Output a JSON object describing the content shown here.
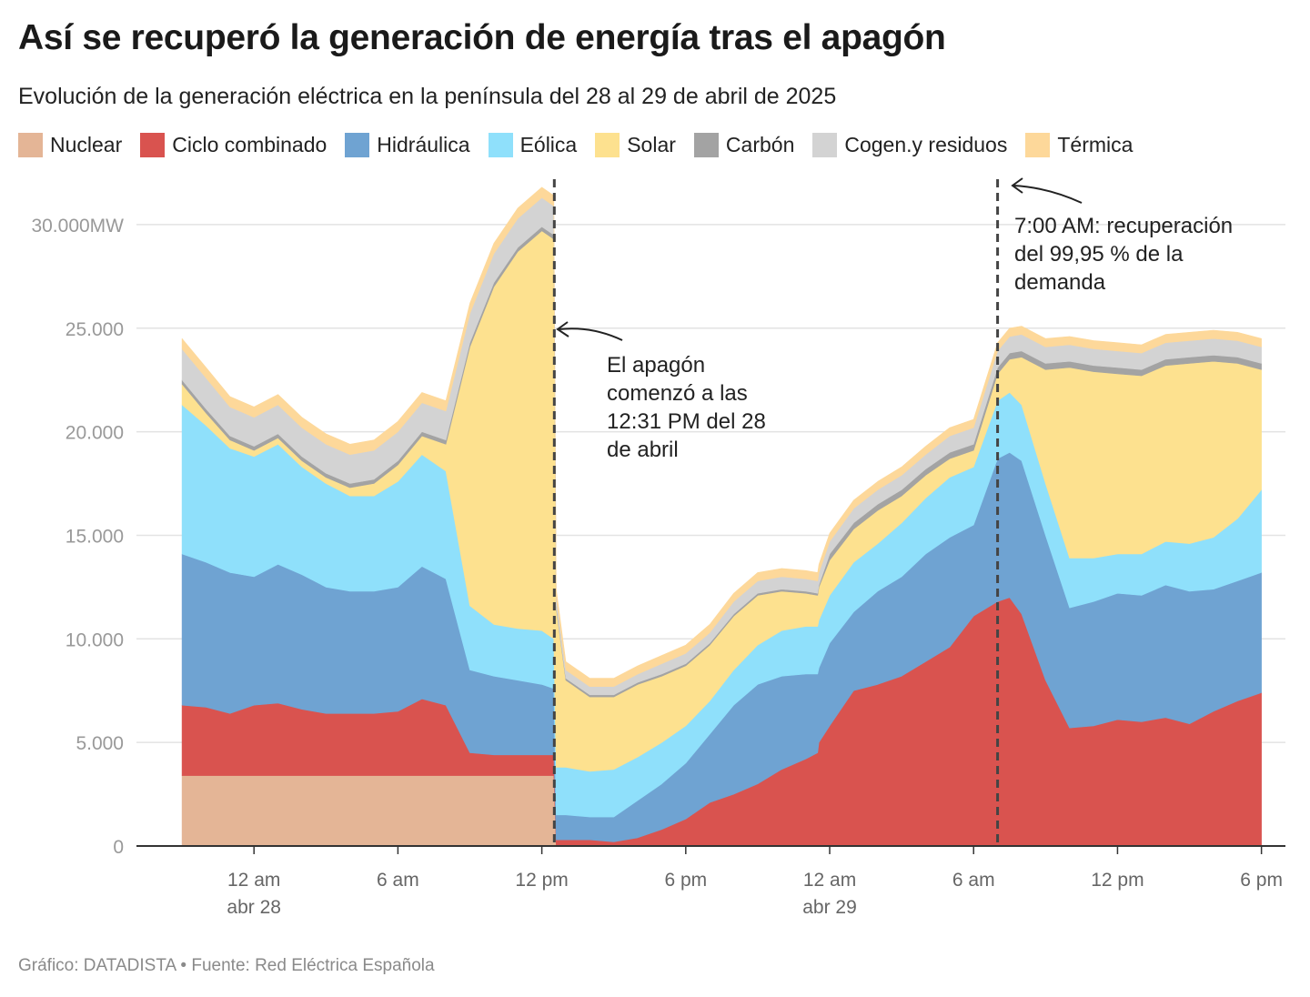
{
  "title": "Así se recuperó la generación de energía tras el apagón",
  "subtitle": "Evolución de la generación eléctrica en la península del 28 al 29 de abril de 2025",
  "source": "Gráfico: DATADISTA • Fuente: Red Eléctrica Española",
  "legend": [
    {
      "label": "Nuclear",
      "color": "#e4b596"
    },
    {
      "label": "Ciclo combinado",
      "color": "#d9534f"
    },
    {
      "label": "Hidráulica",
      "color": "#6fa3d2"
    },
    {
      "label": "Eólica",
      "color": "#8fe0fb"
    },
    {
      "label": "Solar",
      "color": "#fde18f"
    },
    {
      "label": "Carbón",
      "color": "#a3a3a3"
    },
    {
      "label": "Cogen.y residuos",
      "color": "#d3d3d3"
    },
    {
      "label": "Térmica",
      "color": "#fdd89a"
    }
  ],
  "chart_data": {
    "type": "area",
    "stacked": true,
    "title": "Así se recuperó la generación de energía tras el apagón",
    "x_unit": "hours since 00:00 abr 28",
    "x": [
      -3,
      -2,
      -1,
      0,
      1,
      2,
      3,
      4,
      5,
      6,
      7,
      8,
      9,
      10,
      11,
      12,
      12.5,
      12.6,
      13,
      14,
      15,
      16,
      17,
      18,
      19,
      20,
      21,
      22,
      23,
      23.5,
      23.55,
      24,
      25,
      26,
      27,
      28,
      29,
      30,
      31,
      31.5,
      32,
      33,
      34,
      35,
      36,
      37,
      38,
      39,
      40,
      41,
      42
    ],
    "series": [
      {
        "name": "Nuclear",
        "values": [
          3400,
          3400,
          3400,
          3400,
          3400,
          3400,
          3400,
          3400,
          3400,
          3400,
          3400,
          3400,
          3400,
          3400,
          3400,
          3400,
          3400,
          0,
          0,
          0,
          0,
          0,
          0,
          0,
          0,
          0,
          0,
          0,
          0,
          0,
          0,
          0,
          0,
          0,
          0,
          0,
          0,
          0,
          0,
          0,
          0,
          0,
          0,
          0,
          0,
          0,
          0,
          0,
          0,
          0,
          0
        ]
      },
      {
        "name": "Ciclo combinado",
        "values": [
          3400,
          3300,
          3000,
          3400,
          3500,
          3200,
          3000,
          3000,
          3000,
          3100,
          3700,
          3400,
          1100,
          1000,
          1000,
          1000,
          1000,
          300,
          300,
          300,
          200,
          400,
          800,
          1300,
          2100,
          2500,
          3000,
          3700,
          4200,
          4500,
          5000,
          5800,
          7500,
          7800,
          8200,
          8900,
          9600,
          11100,
          11800,
          12000,
          11200,
          8000,
          5700,
          5800,
          6100,
          6000,
          6200,
          5900,
          6500,
          7000,
          7400
        ]
      },
      {
        "name": "Hidráulica",
        "values": [
          7300,
          7000,
          6800,
          6200,
          6700,
          6500,
          6100,
          5900,
          5900,
          6000,
          6400,
          6100,
          4000,
          3800,
          3600,
          3400,
          3200,
          1200,
          1200,
          1100,
          1200,
          1800,
          2200,
          2700,
          3300,
          4300,
          4800,
          4500,
          4100,
          3800,
          3600,
          4000,
          3800,
          4500,
          4800,
          5200,
          5300,
          4400,
          6900,
          7000,
          7400,
          7000,
          5800,
          6000,
          6100,
          6100,
          6400,
          6400,
          5900,
          5800,
          5800
        ]
      },
      {
        "name": "Eólica",
        "values": [
          7200,
          6600,
          6000,
          5800,
          5800,
          5200,
          5000,
          4600,
          4600,
          5100,
          5400,
          5200,
          3100,
          2500,
          2500,
          2600,
          2400,
          2300,
          2300,
          2200,
          2300,
          2100,
          2000,
          1800,
          1600,
          1700,
          1900,
          2200,
          2300,
          2300,
          2300,
          2300,
          2400,
          2300,
          2600,
          2700,
          2900,
          2800,
          2800,
          2900,
          2700,
          2500,
          2400,
          2100,
          1900,
          2000,
          2100,
          2300,
          2500,
          3000,
          4000
        ]
      },
      {
        "name": "Solar",
        "values": [
          1000,
          600,
          400,
          300,
          300,
          300,
          300,
          400,
          600,
          800,
          900,
          1300,
          12500,
          16300,
          18200,
          19300,
          19300,
          7700,
          4200,
          3600,
          3500,
          3500,
          3200,
          2900,
          2700,
          2600,
          2400,
          1900,
          1600,
          1500,
          1600,
          1700,
          1600,
          1600,
          1300,
          1100,
          900,
          800,
          1300,
          1600,
          2300,
          5500,
          9200,
          9000,
          8700,
          8600,
          8500,
          8700,
          8500,
          7500,
          5800
        ]
      },
      {
        "name": "Carbón",
        "values": [
          200,
          200,
          200,
          200,
          200,
          200,
          200,
          200,
          200,
          200,
          200,
          200,
          200,
          200,
          200,
          200,
          200,
          100,
          100,
          100,
          100,
          100,
          100,
          100,
          100,
          100,
          100,
          100,
          100,
          100,
          100,
          300,
          300,
          300,
          300,
          300,
          300,
          300,
          300,
          300,
          300,
          300,
          300,
          300,
          300,
          300,
          300,
          300,
          300,
          300,
          300
        ]
      },
      {
        "name": "Cogen.y residuos",
        "values": [
          1500,
          1500,
          1400,
          1400,
          1400,
          1400,
          1400,
          1400,
          1400,
          1400,
          1400,
          1400,
          1400,
          1400,
          1400,
          1400,
          1400,
          400,
          400,
          400,
          400,
          400,
          500,
          500,
          500,
          600,
          600,
          600,
          600,
          600,
          600,
          600,
          700,
          700,
          700,
          700,
          800,
          800,
          800,
          800,
          800,
          800,
          800,
          800,
          800,
          800,
          800,
          800,
          800,
          800,
          800
        ]
      },
      {
        "name": "Térmica",
        "values": [
          500,
          500,
          500,
          500,
          500,
          500,
          500,
          500,
          500,
          500,
          500,
          500,
          500,
          500,
          500,
          500,
          500,
          400,
          400,
          400,
          400,
          400,
          400,
          400,
          400,
          400,
          400,
          400,
          400,
          400,
          400,
          400,
          400,
          400,
          400,
          400,
          400,
          400,
          400,
          400,
          400,
          400,
          400,
          400,
          400,
          400,
          400,
          400,
          400,
          400,
          400
        ]
      }
    ],
    "xlim": [
      -4.9,
      43
    ],
    "ylim": [
      0,
      32500
    ],
    "y_ticks": [
      0,
      5000,
      10000,
      15000,
      20000,
      25000,
      30000
    ],
    "y_tick_labels": [
      "0",
      "5.000",
      "10.000",
      "15.000",
      "20.000",
      "25.000",
      "30.000MW"
    ],
    "x_ticks": [
      {
        "value": 0,
        "label": "12 am",
        "sublabel": "abr 28"
      },
      {
        "value": 6,
        "label": "6 am",
        "sublabel": ""
      },
      {
        "value": 12,
        "label": "12 pm",
        "sublabel": ""
      },
      {
        "value": 18,
        "label": "6 pm",
        "sublabel": ""
      },
      {
        "value": 24,
        "label": "12 am",
        "sublabel": "abr 29"
      },
      {
        "value": 30,
        "label": "6 am",
        "sublabel": ""
      },
      {
        "value": 36,
        "label": "12 pm",
        "sublabel": ""
      },
      {
        "value": 42,
        "label": "6 pm",
        "sublabel": ""
      }
    ],
    "grid": true,
    "annotations": [
      {
        "x": 12.52,
        "text_lines": [
          "El apagón",
          "comenzó a las",
          "12:31 PM del 28",
          "de abril"
        ]
      },
      {
        "x": 31,
        "text_lines": [
          "7:00 AM: recuperación",
          "del 99,95 % de la",
          "demanda"
        ]
      }
    ]
  }
}
